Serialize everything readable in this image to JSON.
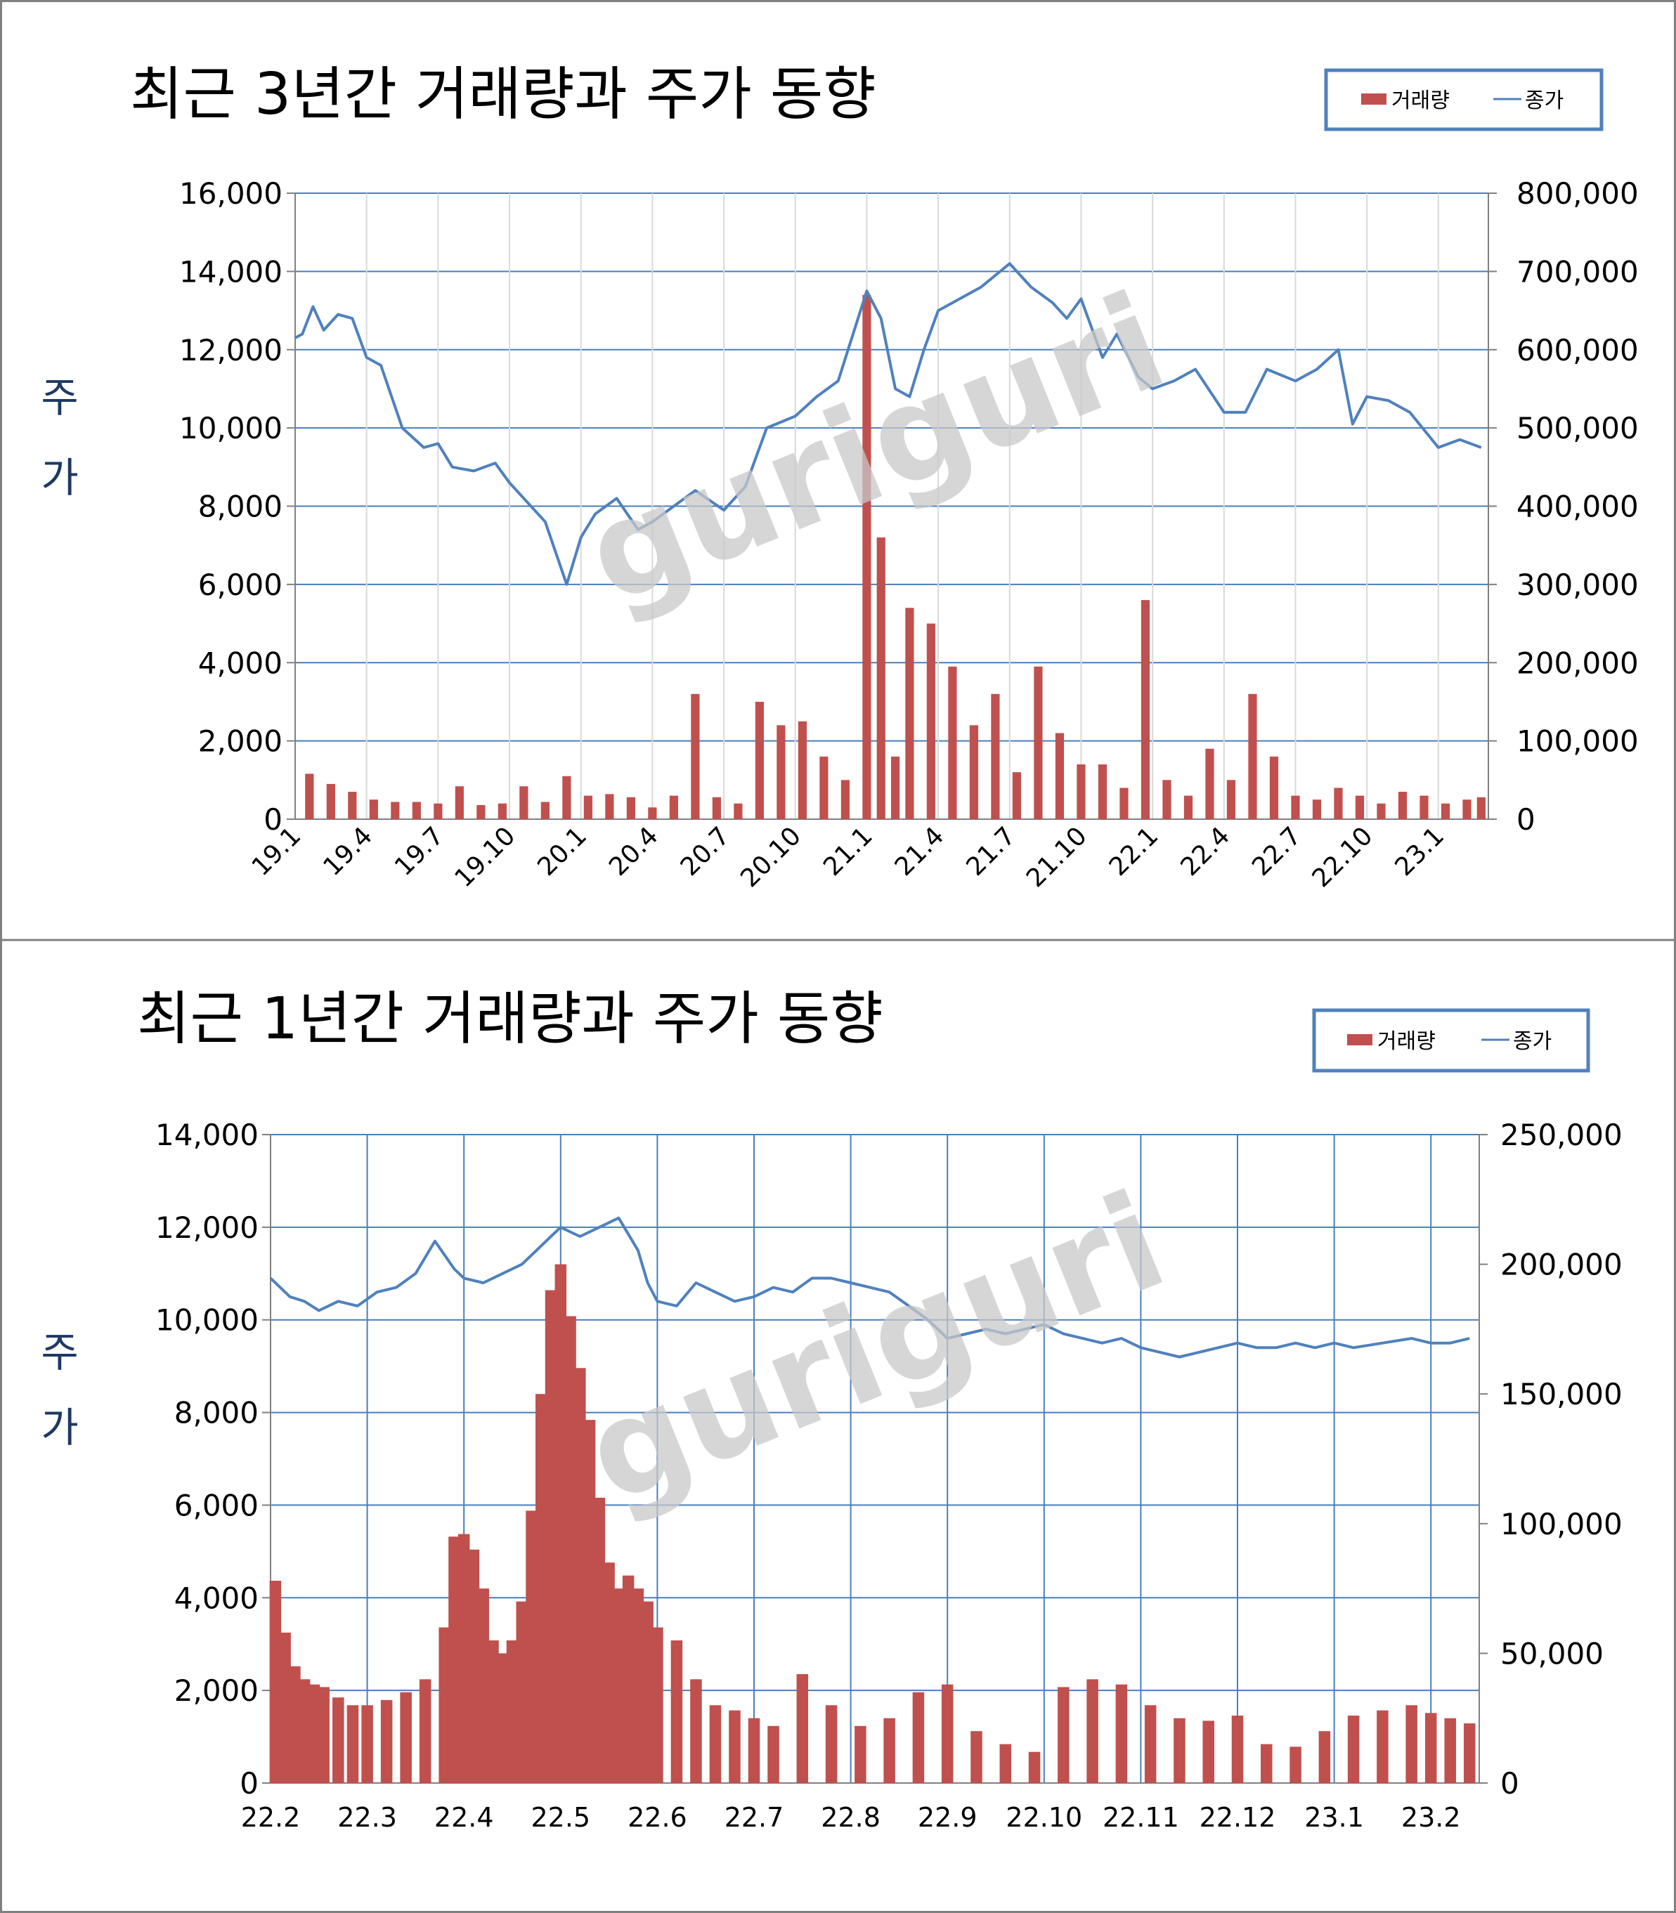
{
  "watermark": "guriguri",
  "colors": {
    "volume": "#C0504D",
    "price": "#4F81BD",
    "grid": "#4A7EBB",
    "legend_border": "#4F81BD",
    "ylabel": "#1F3864",
    "frame": "#808080"
  },
  "chart_data": [
    {
      "type": "bar+line",
      "title": "최근 3년간 거래량과 주가 동향",
      "ylabel": "주가",
      "legend_position": "top-right",
      "grid": true,
      "legend": [
        "거래량",
        "종가"
      ],
      "left_axis": {
        "series": "종가",
        "ylim": [
          0,
          16000
        ],
        "ticks": [
          "0",
          "2,000",
          "4,000",
          "6,000",
          "8,000",
          "10,000",
          "12,000",
          "14,000",
          "16,000"
        ]
      },
      "right_axis": {
        "series": "거래량",
        "ylim": [
          0,
          800000
        ],
        "ticks": [
          "0",
          "100,000",
          "200,000",
          "300,000",
          "400,000",
          "500,000",
          "600,000",
          "700,000",
          "800,000"
        ]
      },
      "x_ticks": [
        "19.1",
        "19.4",
        "19.7",
        "19.10",
        "20.1",
        "20.4",
        "20.7",
        "20.10",
        "21.1",
        "21.4",
        "21.7",
        "21.10",
        "22.1",
        "22.4",
        "22.7",
        "22.10",
        "23.1"
      ],
      "series": [
        {
          "name": "종가",
          "type": "line",
          "x": [
            0.0,
            0.1,
            0.25,
            0.4,
            0.6,
            0.8,
            1.0,
            1.2,
            1.5,
            1.8,
            2.0,
            2.2,
            2.5,
            2.8,
            3.0,
            3.5,
            3.8,
            4.0,
            4.2,
            4.5,
            4.8,
            5.0,
            5.3,
            5.6,
            6.0,
            6.3,
            6.6,
            7.0,
            7.3,
            7.6,
            8.0,
            8.2,
            8.4,
            8.6,
            8.8,
            9.0,
            9.3,
            9.6,
            10.0,
            10.3,
            10.6,
            10.8,
            11.0,
            11.3,
            11.5,
            11.8,
            12.0,
            12.3,
            12.6,
            13.0,
            13.3,
            13.6,
            14.0,
            14.3,
            14.6,
            14.8,
            15.0,
            15.3,
            15.6,
            16.0,
            16.3,
            16.6
          ],
          "values": [
            12300,
            12400,
            13100,
            12500,
            12900,
            12800,
            11800,
            11600,
            10000,
            9500,
            9600,
            9000,
            8900,
            9100,
            8600,
            7600,
            6000,
            7200,
            7800,
            8200,
            7400,
            7600,
            8000,
            8400,
            7900,
            8500,
            10000,
            10300,
            10800,
            11200,
            13500,
            12800,
            11000,
            10800,
            12000,
            13000,
            13300,
            13600,
            14200,
            13600,
            13200,
            12800,
            13300,
            11800,
            12400,
            11300,
            11000,
            11200,
            11500,
            10400,
            10400,
            11500,
            11200,
            11500,
            12000,
            10100,
            10800,
            10700,
            10400,
            9500,
            9700,
            9500
          ]
        },
        {
          "name": "거래량",
          "type": "bar",
          "x": [
            0.2,
            0.5,
            0.8,
            1.1,
            1.4,
            1.7,
            2.0,
            2.3,
            2.6,
            2.9,
            3.2,
            3.5,
            3.8,
            4.1,
            4.4,
            4.7,
            5.0,
            5.3,
            5.6,
            5.9,
            6.2,
            6.5,
            6.8,
            7.1,
            7.4,
            7.7,
            8.0,
            8.2,
            8.4,
            8.6,
            8.9,
            9.2,
            9.5,
            9.8,
            10.1,
            10.4,
            10.7,
            11.0,
            11.3,
            11.6,
            11.9,
            12.2,
            12.5,
            12.8,
            13.1,
            13.4,
            13.7,
            14.0,
            14.3,
            14.6,
            14.9,
            15.2,
            15.5,
            15.8,
            16.1,
            16.4,
            16.6
          ],
          "values": [
            58000,
            45000,
            35000,
            25000,
            22000,
            22000,
            20000,
            42000,
            18000,
            20000,
            42000,
            22000,
            55000,
            30000,
            32000,
            28000,
            15000,
            30000,
            160000,
            28000,
            20000,
            150000,
            120000,
            125000,
            80000,
            50000,
            670000,
            360000,
            80000,
            270000,
            250000,
            195000,
            120000,
            160000,
            60000,
            195000,
            110000,
            70000,
            70000,
            40000,
            280000,
            50000,
            30000,
            90000,
            50000,
            160000,
            80000,
            30000,
            25000,
            40000,
            30000,
            20000,
            35000,
            30000,
            20000,
            25000,
            28000
          ]
        }
      ]
    },
    {
      "type": "bar+line",
      "title": "최근 1년간 거래량과 주가 동향",
      "ylabel": "주가",
      "legend_position": "top-right",
      "grid": true,
      "legend": [
        "거래량",
        "종가"
      ],
      "left_axis": {
        "series": "종가",
        "ylim": [
          0,
          14000
        ],
        "ticks": [
          "0",
          "2,000",
          "4,000",
          "6,000",
          "8,000",
          "10,000",
          "12,000",
          "14,000"
        ]
      },
      "right_axis": {
        "series": "거래량",
        "ylim": [
          0,
          250000
        ],
        "ticks": [
          "0",
          "50,000",
          "100,000",
          "150,000",
          "200,000",
          "250,000"
        ]
      },
      "x_ticks": [
        "22.2",
        "22.3",
        "22.4",
        "22.5",
        "22.6",
        "22.7",
        "22.8",
        "22.9",
        "22.10",
        "22.11",
        "22.12",
        "23.1",
        "23.2"
      ],
      "series": [
        {
          "name": "종가",
          "type": "line",
          "x": [
            0.0,
            0.1,
            0.2,
            0.35,
            0.5,
            0.7,
            0.9,
            1.1,
            1.3,
            1.5,
            1.7,
            1.9,
            2.0,
            2.2,
            2.4,
            2.6,
            2.8,
            2.9,
            3.0,
            3.1,
            3.2,
            3.4,
            3.6,
            3.8,
            3.9,
            4.0,
            4.2,
            4.4,
            4.6,
            4.8,
            5.0,
            5.2,
            5.4,
            5.6,
            5.8,
            6.0,
            6.2,
            6.4,
            6.6,
            6.8,
            7.0,
            7.2,
            7.4,
            7.6,
            7.8,
            8.0,
            8.2,
            8.4,
            8.6,
            8.8,
            9.0,
            9.2,
            9.4,
            9.6,
            9.8,
            10.0,
            10.2,
            10.4,
            10.6,
            10.8,
            11.0,
            11.2,
            11.5,
            11.8,
            12.0,
            12.2,
            12.4
          ],
          "values": [
            10900,
            10700,
            10500,
            10400,
            10200,
            10400,
            10300,
            10600,
            10700,
            11000,
            11700,
            11100,
            10900,
            10800,
            11000,
            11200,
            11600,
            11800,
            12000,
            11900,
            11800,
            12000,
            12200,
            11500,
            10800,
            10400,
            10300,
            10800,
            10600,
            10400,
            10500,
            10700,
            10600,
            10900,
            10900,
            10800,
            10700,
            10600,
            10300,
            10000,
            9600,
            9700,
            9800,
            9700,
            9800,
            9900,
            9700,
            9600,
            9500,
            9600,
            9400,
            9300,
            9200,
            9300,
            9400,
            9500,
            9400,
            9400,
            9500,
            9400,
            9500,
            9400,
            9500,
            9600,
            9500,
            9500,
            9600
          ]
        },
        {
          "name": "거래량",
          "type": "bar",
          "x": [
            0.05,
            0.15,
            0.25,
            0.35,
            0.45,
            0.55,
            0.7,
            0.85,
            1.0,
            1.2,
            1.4,
            1.6,
            1.8,
            1.9,
            2.0,
            2.1,
            2.2,
            2.3,
            2.4,
            2.5,
            2.6,
            2.7,
            2.8,
            2.9,
            3.0,
            3.1,
            3.2,
            3.3,
            3.4,
            3.5,
            3.6,
            3.7,
            3.8,
            3.9,
            4.0,
            4.2,
            4.4,
            4.6,
            4.8,
            5.0,
            5.2,
            5.5,
            5.8,
            6.1,
            6.4,
            6.7,
            7.0,
            7.3,
            7.6,
            7.9,
            8.2,
            8.5,
            8.8,
            9.1,
            9.4,
            9.7,
            10.0,
            10.3,
            10.6,
            10.9,
            11.2,
            11.5,
            11.8,
            12.0,
            12.2,
            12.4
          ],
          "values": [
            78000,
            58000,
            45000,
            40000,
            38000,
            37000,
            33000,
            30000,
            30000,
            32000,
            35000,
            40000,
            60000,
            95000,
            96000,
            90000,
            75000,
            55000,
            50000,
            55000,
            70000,
            105000,
            150000,
            190000,
            200000,
            180000,
            160000,
            140000,
            110000,
            85000,
            75000,
            80000,
            75000,
            70000,
            60000,
            55000,
            40000,
            30000,
            28000,
            25000,
            22000,
            42000,
            30000,
            22000,
            25000,
            35000,
            38000,
            20000,
            15000,
            12000,
            37000,
            40000,
            38000,
            30000,
            25000,
            24000,
            26000,
            15000,
            14000,
            20000,
            26000,
            28000,
            30000,
            27000,
            25000,
            23000
          ]
        }
      ]
    }
  ]
}
